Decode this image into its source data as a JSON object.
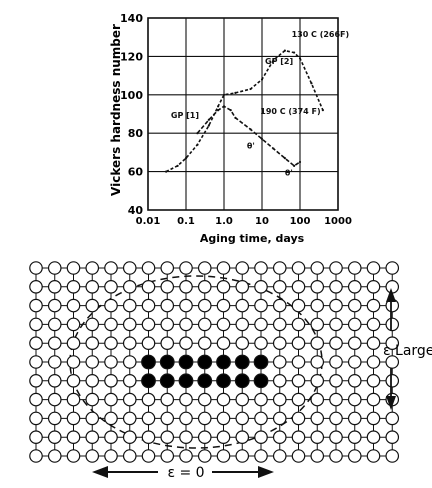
{
  "chart_data": {
    "type": "line",
    "xlabel": "Aging time, days",
    "ylabel": "Vickers hardness number",
    "xscale": "log",
    "xlim": [
      0.01,
      1000
    ],
    "ylim": [
      40,
      140
    ],
    "grid": true,
    "x_ticks": [
      "0.01",
      "0.1",
      "1.0",
      "10",
      "100",
      "1000"
    ],
    "y_ticks": [
      "40",
      "60",
      "80",
      "100",
      "120",
      "140"
    ],
    "series": [
      {
        "name": "130 C (266F)",
        "x": [
          0.03,
          0.06,
          0.1,
          0.2,
          0.4,
          0.7,
          1.0,
          2,
          5,
          10,
          20,
          40,
          70,
          100,
          200,
          400
        ],
        "y": [
          60,
          63,
          67,
          74,
          84,
          94,
          100,
          101,
          103,
          108,
          118,
          123,
          122,
          119,
          106,
          92
        ]
      },
      {
        "name": "190 C (374 F)",
        "x": [
          0.2,
          0.4,
          0.7,
          1.0,
          1.5,
          2,
          5,
          10,
          20,
          40,
          70,
          100
        ],
        "y": [
          80,
          87,
          92,
          94,
          92,
          88,
          82,
          77,
          72,
          67,
          63,
          65
        ]
      }
    ],
    "annotations": [
      {
        "text": "GP [1]",
        "x": 0.04,
        "y": 88
      },
      {
        "text": "GP [2]",
        "x": 12,
        "y": 116
      },
      {
        "text": "130 C (266F)",
        "x": 60,
        "y": 130
      },
      {
        "text": "190 C (374 F)",
        "x": 9,
        "y": 90
      },
      {
        "text": "θ'",
        "x": 4,
        "y": 72
      },
      {
        "text": "θ'",
        "x": 40,
        "y": 58
      }
    ]
  },
  "lattice": {
    "columns": 20,
    "rows": 11,
    "cluster": {
      "row_start": 5,
      "row_end": 6,
      "col_start": 6,
      "col_end": 12
    }
  },
  "labels": {
    "strain_large": "ε Large",
    "strain_zero": "ε = 0"
  }
}
